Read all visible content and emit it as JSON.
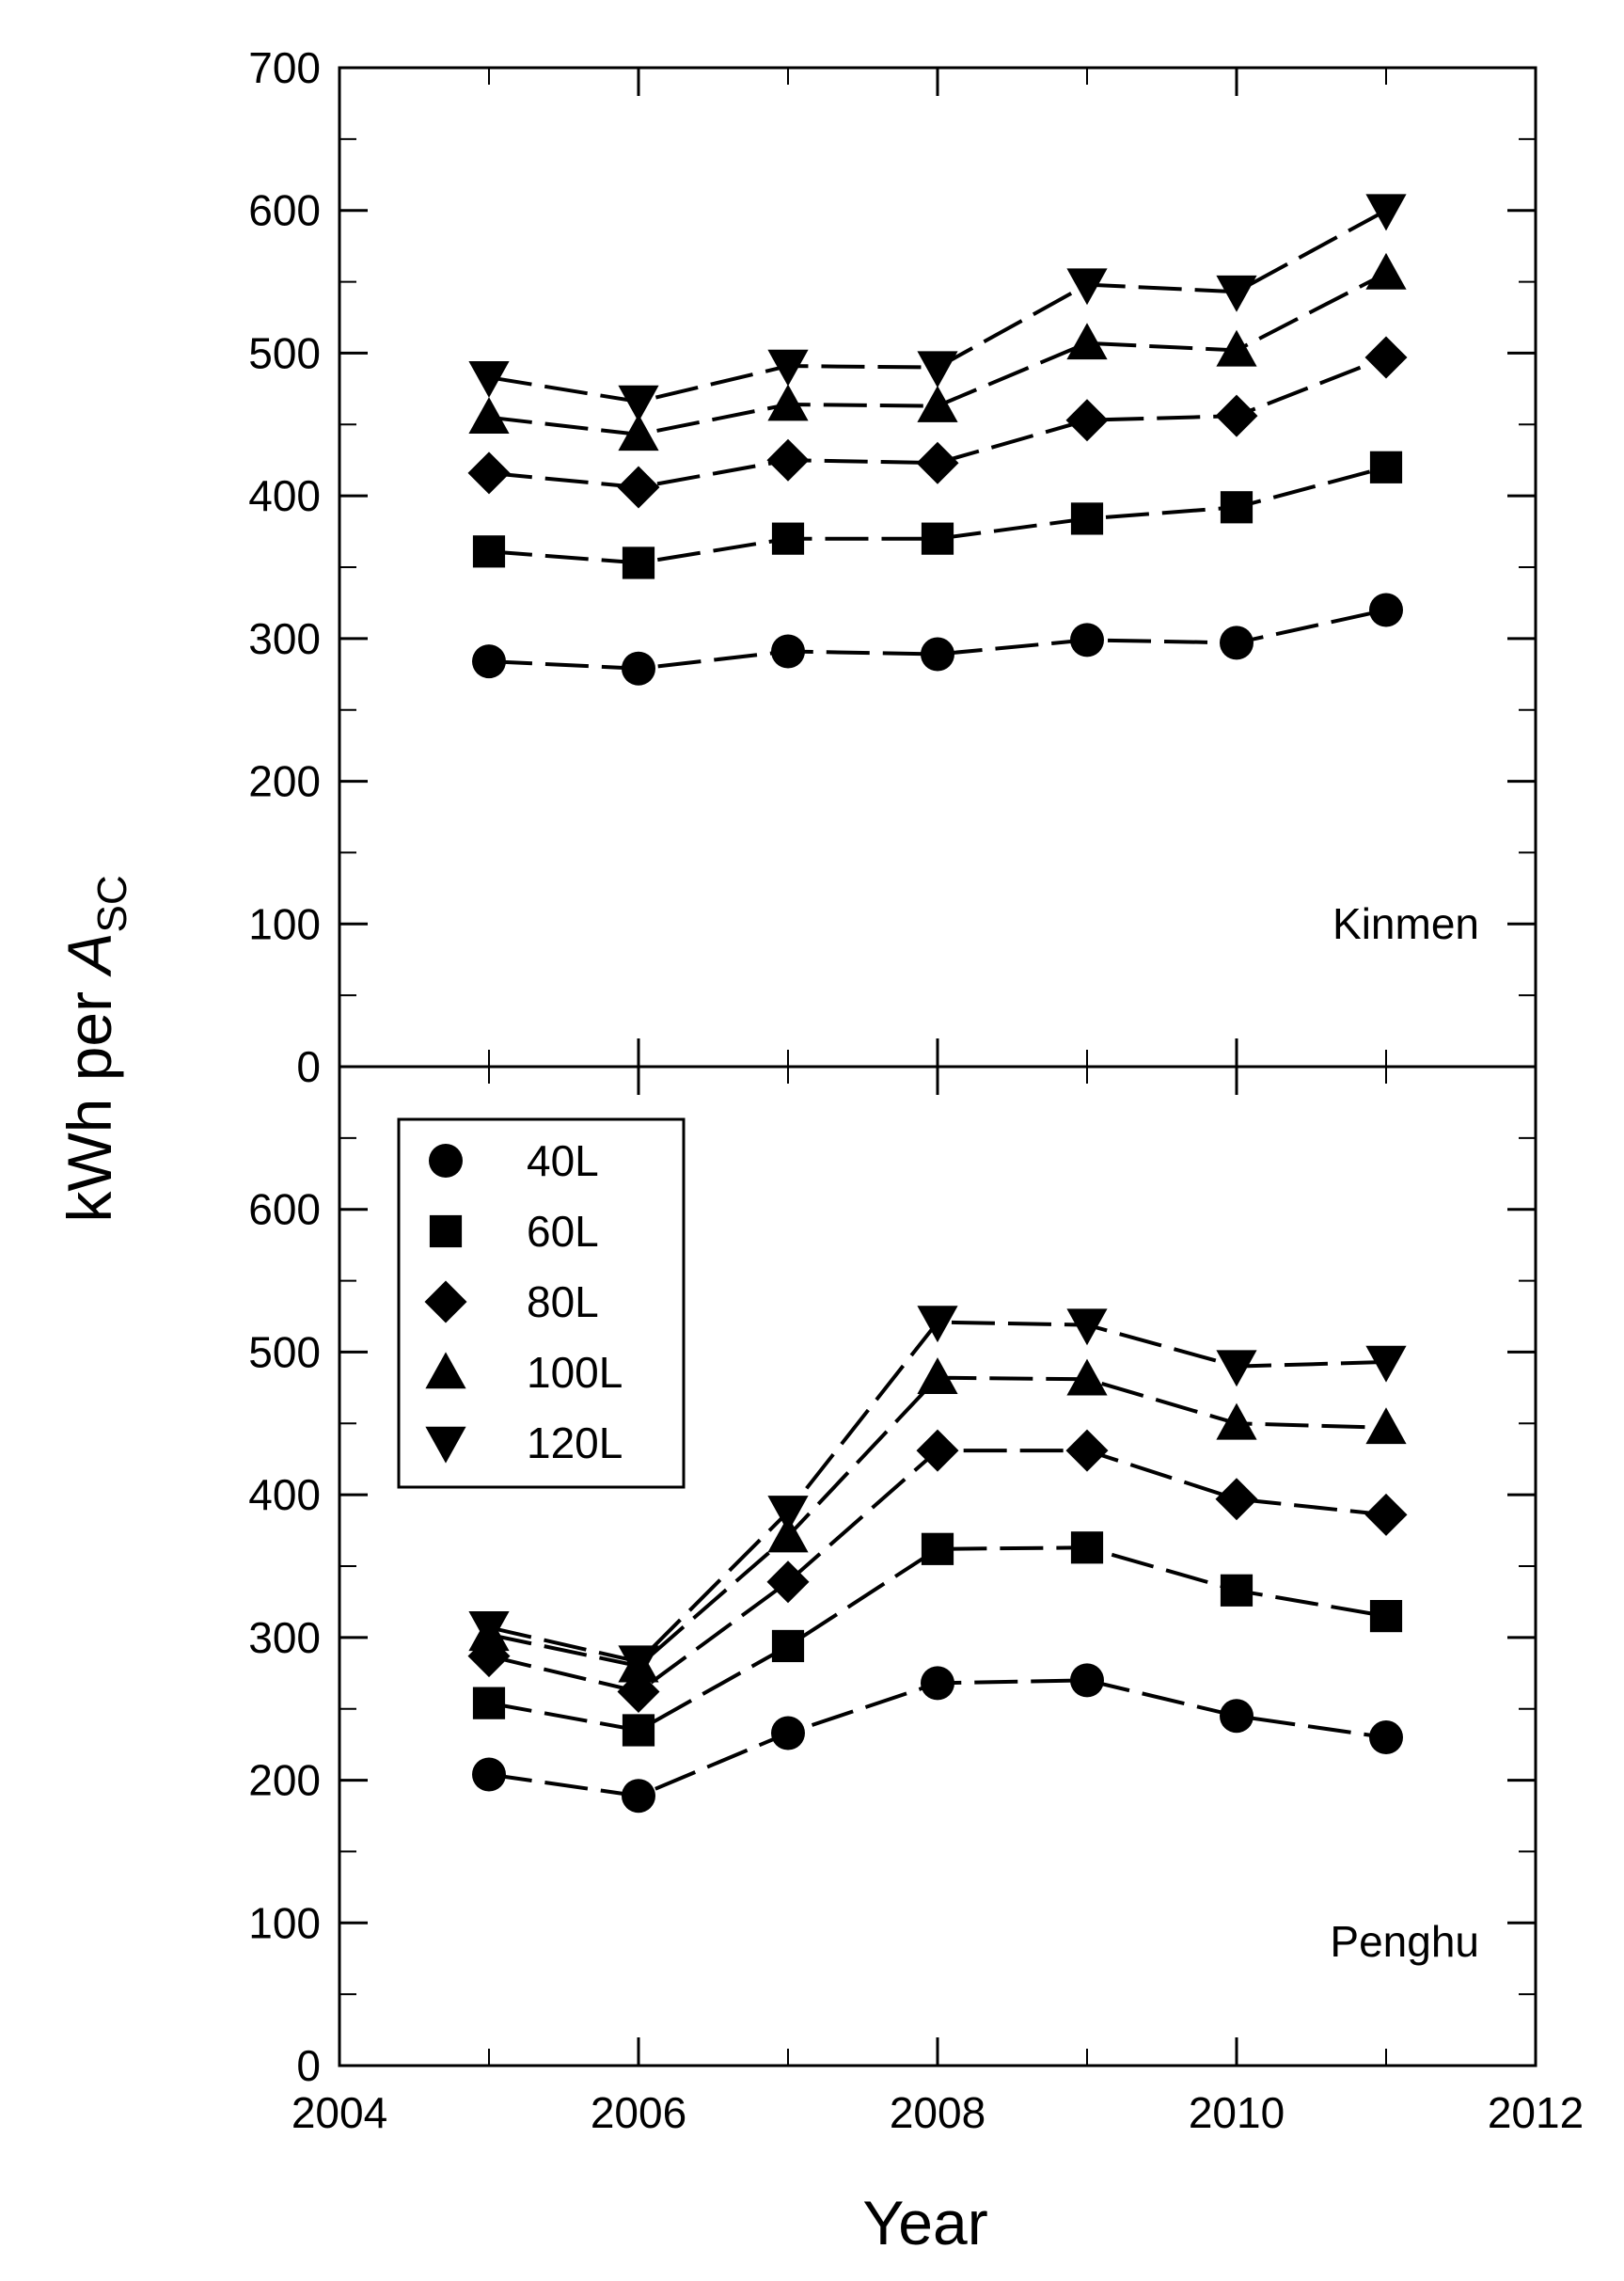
{
  "chart_data": {
    "type": "line",
    "xlabel": "Year",
    "ylabel": {
      "main": "kWh per ",
      "symbol": "A",
      "subscript": "SC"
    },
    "x": [
      2005,
      2006,
      2007,
      2008,
      2009,
      2010,
      2011
    ],
    "xlim": [
      2004,
      2012
    ],
    "xticks": [
      "2004",
      "2006",
      "2008",
      "2010",
      "2012"
    ],
    "legend": {
      "position": "top-left of bottom panel",
      "entries": [
        {
          "label": "40L",
          "marker": "circle"
        },
        {
          "label": "60L",
          "marker": "square"
        },
        {
          "label": "80L",
          "marker": "diamond"
        },
        {
          "label": "100L",
          "marker": "triangle-up"
        },
        {
          "label": "120L",
          "marker": "triangle-down"
        }
      ]
    },
    "panels": [
      {
        "name": "Kinmen",
        "label": "Kinmen",
        "ylim": [
          0,
          700
        ],
        "yticks": [
          "0",
          "100",
          "200",
          "300",
          "400",
          "500",
          "600",
          "700"
        ],
        "series": [
          {
            "name": "40L",
            "values": [
              284,
              279,
              291,
              289,
              299,
              297,
              320
            ]
          },
          {
            "name": "60L",
            "values": [
              361,
              353,
              370,
              370,
              384,
              392,
              420
            ]
          },
          {
            "name": "80L",
            "values": [
              416,
              406,
              425,
              423,
              453,
              456,
              497
            ]
          },
          {
            "name": "100L",
            "values": [
              455,
              443,
              464,
              463,
              507,
              502,
              556
            ]
          },
          {
            "name": "120L",
            "values": [
              483,
              466,
              491,
              490,
              548,
              543,
              600
            ]
          }
        ]
      },
      {
        "name": "Penghu",
        "label": "Penghu",
        "ylim": [
          0,
          700
        ],
        "yticks": [
          "0",
          "100",
          "200",
          "300",
          "400",
          "500",
          "600"
        ],
        "series": [
          {
            "name": "40L",
            "values": [
              204,
              189,
              233,
              268,
              270,
              245,
              230
            ]
          },
          {
            "name": "60L",
            "values": [
              254,
              235,
              294,
              362,
              363,
              333,
              315
            ]
          },
          {
            "name": "80L",
            "values": [
              287,
              262,
              339,
              431,
              431,
              397,
              386
            ]
          },
          {
            "name": "100L",
            "values": [
              302,
              280,
              371,
              482,
              481,
              450,
              447
            ]
          },
          {
            "name": "120L",
            "values": [
              307,
              283,
              388,
              521,
              519,
              490,
              493
            ]
          }
        ]
      }
    ]
  }
}
